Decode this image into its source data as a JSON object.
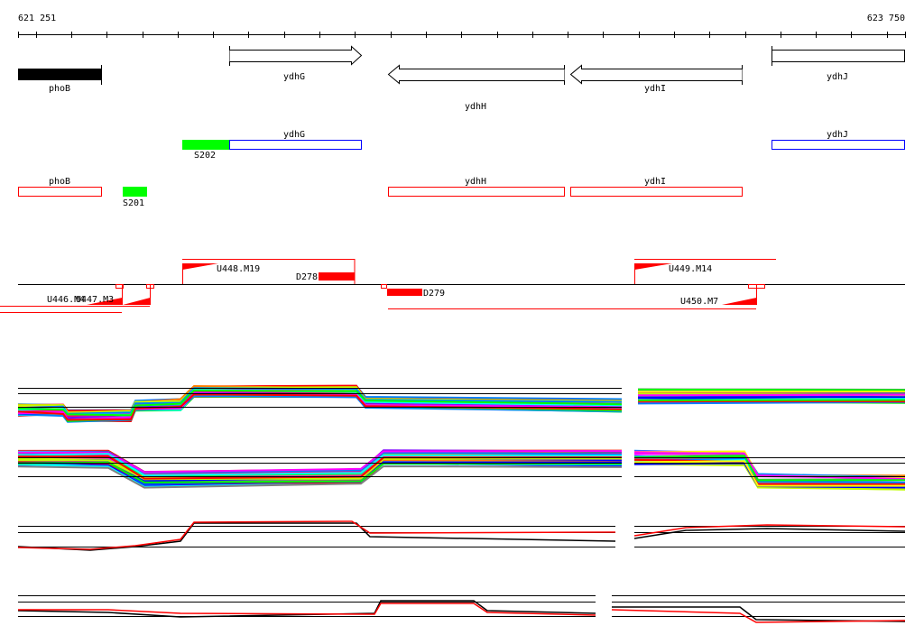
{
  "ruler": {
    "start_label": "621 251",
    "end_label": "623 750"
  },
  "genes": {
    "phoB": "phoB",
    "ydhG": "ydhG",
    "ydhH": "ydhH",
    "ydhI": "ydhI",
    "ydhJ": "ydhJ"
  },
  "track2": {
    "s202": "S202",
    "ydhG": "ydhG",
    "ydhJ": "ydhJ"
  },
  "track3": {
    "phoB": "phoB",
    "s201": "S201",
    "ydhH": "ydhH",
    "ydhI": "ydhI"
  },
  "track4": {
    "u446": "U446.M4",
    "u447": "U447.M3",
    "u448": "U448.M19",
    "d278": "D278",
    "d279": "D279",
    "u449": "U449.M14",
    "u450": "U450.M7"
  },
  "colors": {
    "gene_fill": "#000000",
    "feature_red": "#ff0000",
    "feature_blue": "#0000ff",
    "feature_green": "#00ff00",
    "trace_palette": [
      "#ff00ff",
      "#00ffff",
      "#ff0000",
      "#00ff00",
      "#0000ff",
      "#ffff00",
      "#ff8000",
      "#808080",
      "#8000ff",
      "#ff0080",
      "#c0ff00",
      "#0080ff"
    ]
  }
}
